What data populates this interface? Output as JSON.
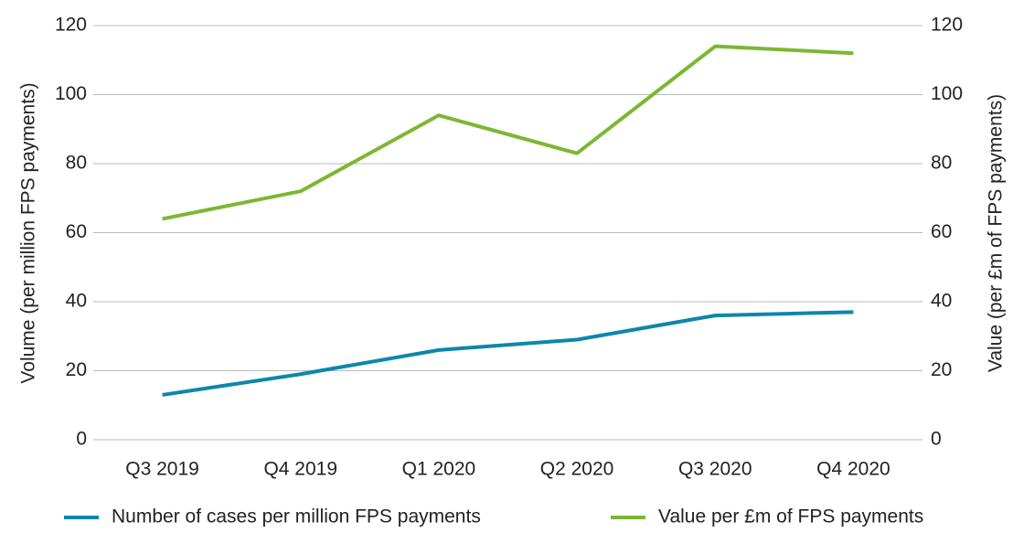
{
  "chart_data": {
    "type": "line",
    "categories": [
      "Q3 2019",
      "Q4 2019",
      "Q1 2020",
      "Q2 2020",
      "Q3 2020",
      "Q4 2020"
    ],
    "ylabel": "Volume (per million FPS payments)",
    "y2label": "Value (per £m of FPS payments)",
    "ylim": [
      0,
      120
    ],
    "yticks": [
      0,
      20,
      40,
      60,
      80,
      100,
      120
    ],
    "y2lim": [
      0,
      120
    ],
    "y2ticks": [
      0,
      20,
      40,
      60,
      80,
      100,
      120
    ],
    "grid": true,
    "legend": "bottom",
    "series": [
      {
        "name": "Number of cases per million FPS payments",
        "color": "#0e86ac",
        "values": [
          13,
          19,
          26,
          29,
          36,
          37
        ]
      },
      {
        "name": "Value per £m of FPS payments",
        "color": "#7cb733",
        "axis": "y2",
        "values": [
          64,
          72,
          94,
          83,
          114,
          112
        ]
      }
    ]
  }
}
